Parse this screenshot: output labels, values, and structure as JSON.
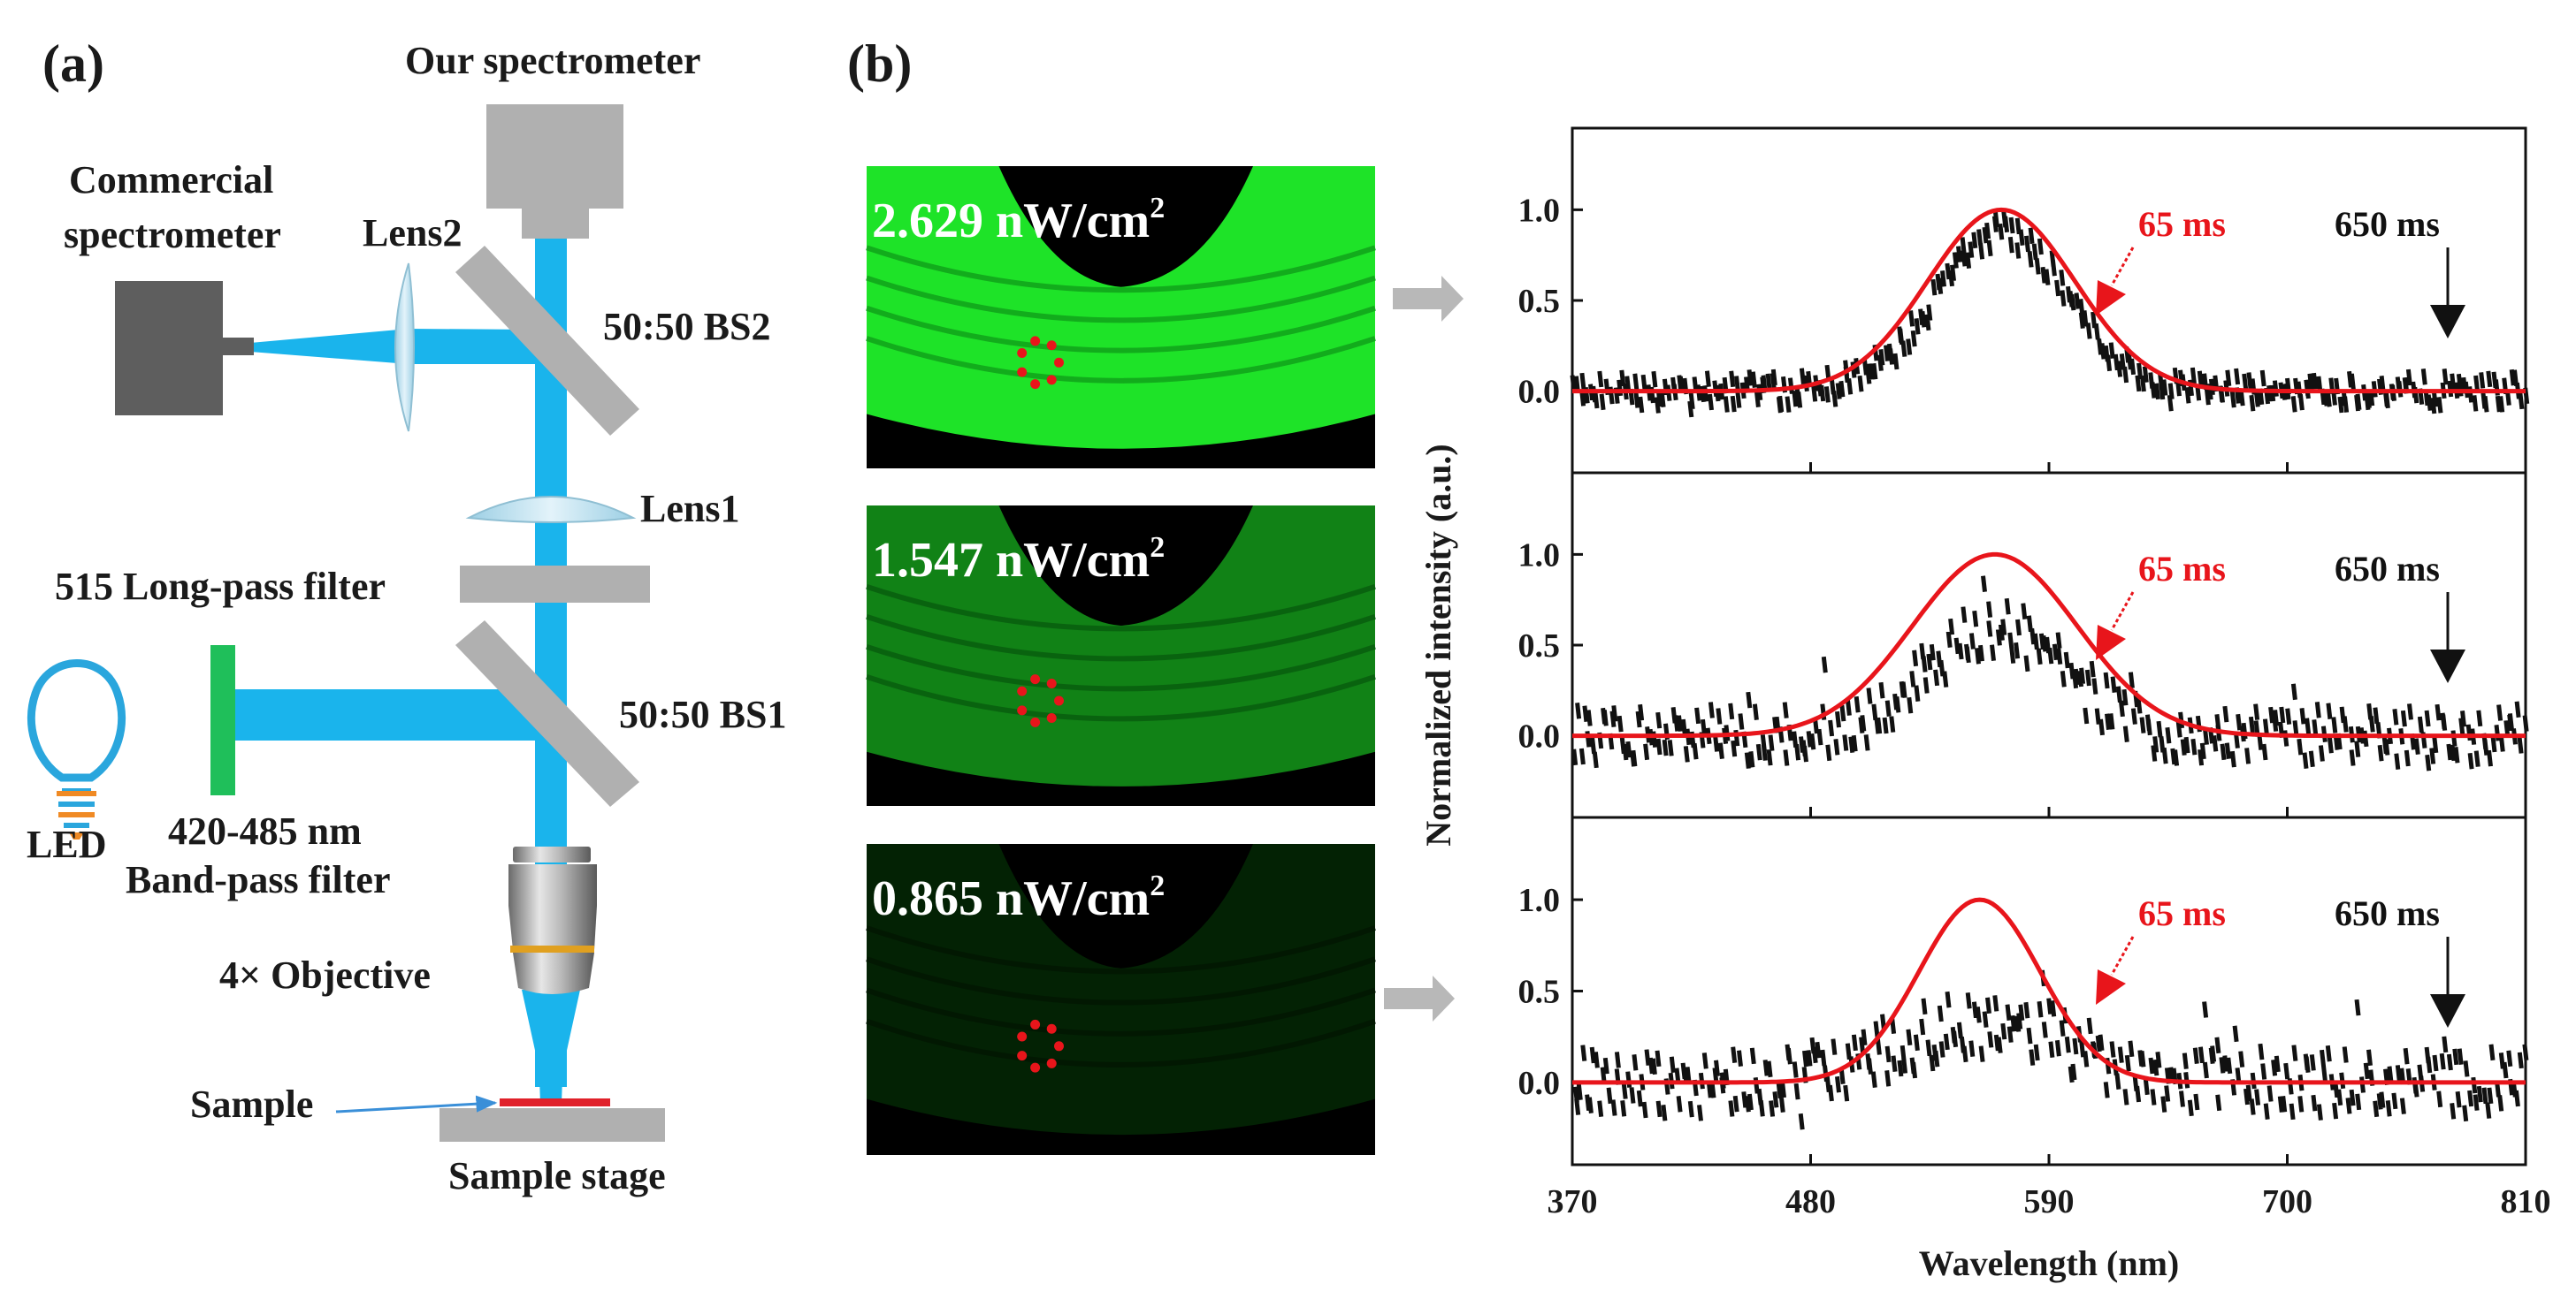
{
  "panel_a": {
    "letter": "(a)",
    "labels": {
      "our_spectrometer": "Our spectrometer",
      "commercial_line1": "Commercial",
      "commercial_line2": "spectrometer",
      "lens2": "Lens2",
      "bs2": "50:50 BS2",
      "lens1": "Lens1",
      "longpass": "515 Long-pass filter",
      "bs1": "50:50 BS1",
      "bandpass_line1": "420-485 nm",
      "bandpass_line2": "Band-pass filter",
      "led": "LED",
      "objective": "4× Objective",
      "sample": "Sample",
      "sample_stage": "Sample stage"
    },
    "colors": {
      "beam": "#1ab4ec",
      "optic": "#b0b0b0",
      "camera_dark": "#5e5e5e",
      "lens_fill": "#bfe0ee",
      "bandpass": "#1fbf5a",
      "sample": "#e0202a"
    }
  },
  "panel_b": {
    "letter": "(b)",
    "images": [
      {
        "label": "2.629 nW/cm",
        "superscript": "2",
        "brightness": 1.0
      },
      {
        "label": "1.547 nW/cm",
        "superscript": "2",
        "brightness": 0.55
      },
      {
        "label": "0.865 nW/cm",
        "superscript": "2",
        "brightness": 0.1
      }
    ]
  },
  "chart_data": {
    "type": "line",
    "xlabel": "Wavelength (nm)",
    "ylabel": "Normalized intensity (a.u.)",
    "xlim": [
      370,
      810
    ],
    "xticks": [
      370,
      480,
      590,
      700,
      810
    ],
    "ylim": [
      -0.45,
      1.45
    ],
    "yticks": [
      "1.0",
      "0.5",
      "0.0"
    ],
    "colors": {
      "fit": "#e8151b",
      "data": "#111111",
      "arrow_gray": "#b8b8b8"
    },
    "subplots": [
      {
        "annotations": [
          "65 ms",
          "650 ms"
        ],
        "fit": {
          "peak_x": 568,
          "sigma": 34,
          "amplitude": 1.0
        },
        "measured": {
          "peak_x": 568,
          "sigma": 30,
          "amplitude": 0.88,
          "noise": 0.08,
          "points": 300
        }
      },
      {
        "annotations": [
          "65 ms",
          "650 ms"
        ],
        "fit": {
          "peak_x": 565,
          "sigma": 38,
          "amplitude": 1.0
        },
        "measured": {
          "peak_x": 565,
          "sigma": 32,
          "amplitude": 0.6,
          "noise": 0.15,
          "points": 300
        }
      },
      {
        "annotations": [
          "65 ms",
          "650 ms"
        ],
        "fit": {
          "peak_x": 558,
          "sigma": 28,
          "amplitude": 1.0
        },
        "measured": {
          "peak_x": 560,
          "sigma": 40,
          "amplitude": 0.32,
          "noise": 0.17,
          "points": 300
        }
      }
    ]
  }
}
